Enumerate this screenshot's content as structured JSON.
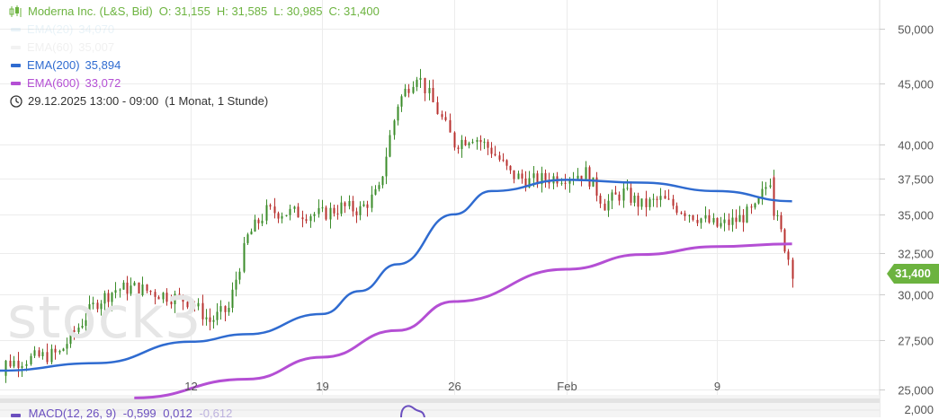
{
  "header": {
    "instrument": "Moderna Inc. (L&S, Bid)",
    "open": "O: 31,155",
    "high": "H: 31,585",
    "low": "L: 30,985",
    "close": "C: 31,400",
    "color": "#6cb33f"
  },
  "indicators": [
    {
      "label": "EMA(20)",
      "value": "34,070",
      "color": "#9ecae1",
      "faded": true
    },
    {
      "label": "EMA(60)",
      "value": "35,007",
      "color": "#c8c8c8",
      "faded": true
    },
    {
      "label": "EMA(200)",
      "value": "35,894",
      "color": "#2f6bd0",
      "faded": false
    },
    {
      "label": "EMA(600)",
      "value": "33,072",
      "color": "#b44fd4",
      "faded": false
    }
  ],
  "datetime": {
    "range": "29.12.2025 13:00 - 09:00",
    "period": "(1 Monat, 1 Stunde)",
    "icon": "clock-icon"
  },
  "macd": {
    "label": "MACD(12, 26, 9)",
    "v1": "-0,599",
    "v2": "0,012",
    "v3": "-0,612",
    "color": "#6b4fbf"
  },
  "watermark": "stock3",
  "current_price_label": "31,400",
  "chart_data": {
    "type": "candlestick",
    "y_scale": "log",
    "ylim": [
      24.6,
      52.5
    ],
    "y_ticks": [
      {
        "value": 50,
        "label": "50,000"
      },
      {
        "value": 45,
        "label": "45,000"
      },
      {
        "value": 40,
        "label": "40,000"
      },
      {
        "value": 37.5,
        "label": "37,500"
      },
      {
        "value": 35,
        "label": "35,000"
      },
      {
        "value": 32.5,
        "label": "32,500"
      },
      {
        "value": 30,
        "label": "30,000"
      },
      {
        "value": 27.5,
        "label": "27,500"
      },
      {
        "value": 25,
        "label": "25,000"
      }
    ],
    "x_ticks": [
      {
        "label": "12",
        "date": "2026-01-12"
      },
      {
        "label": "19",
        "date": "2026-01-19"
      },
      {
        "label": "26",
        "date": "2026-01-26"
      },
      {
        "label": "Feb",
        "date": "2026-02-01"
      },
      {
        "label": "9",
        "date": "2026-02-09"
      }
    ],
    "macd_tick": {
      "value": 2,
      "label": "2,000"
    },
    "price_series": [
      {
        "date": "2025-12-29",
        "close": 26.2
      },
      {
        "date": "2025-12-31",
        "close": 26.0
      },
      {
        "date": "2026-01-02",
        "close": 26.3
      },
      {
        "date": "2026-01-05",
        "close": 26.8
      },
      {
        "date": "2026-01-06",
        "close": 28.2
      },
      {
        "date": "2026-01-07",
        "close": 29.6
      },
      {
        "date": "2026-01-08",
        "close": 30.3
      },
      {
        "date": "2026-01-09",
        "close": 30.4
      },
      {
        "date": "2026-01-12",
        "close": 29.6
      },
      {
        "date": "2026-01-13",
        "close": 28.5
      },
      {
        "date": "2026-01-14",
        "close": 29.2
      },
      {
        "date": "2026-01-15",
        "close": 33.5
      },
      {
        "date": "2026-01-16",
        "close": 35.2
      },
      {
        "date": "2026-01-19",
        "close": 35.0
      },
      {
        "date": "2026-01-20",
        "close": 35.5
      },
      {
        "date": "2026-01-21",
        "close": 35.3
      },
      {
        "date": "2026-01-22",
        "close": 36.6
      },
      {
        "date": "2026-01-23",
        "close": 43.3
      },
      {
        "date": "2026-01-24",
        "close": 45.9
      },
      {
        "date": "2026-01-26",
        "close": 40.1
      },
      {
        "date": "2026-01-27",
        "close": 40.7
      },
      {
        "date": "2026-01-28",
        "close": 39.6
      },
      {
        "date": "2026-01-29",
        "close": 37.8
      },
      {
        "date": "2026-01-30",
        "close": 37.3
      },
      {
        "date": "2026-02-02",
        "close": 37.9
      },
      {
        "date": "2026-02-03",
        "close": 35.7
      },
      {
        "date": "2026-02-04",
        "close": 36.5
      },
      {
        "date": "2026-02-05",
        "close": 35.6
      },
      {
        "date": "2026-02-06",
        "close": 36.0
      },
      {
        "date": "2026-02-09",
        "close": 34.2
      },
      {
        "date": "2026-02-10",
        "close": 34.6
      },
      {
        "date": "2026-02-11",
        "close": 35.3
      },
      {
        "date": "2026-02-12",
        "close": 38.0
      },
      {
        "date": "2026-02-12",
        "close": 35.3
      },
      {
        "date": "2026-02-13",
        "close": 31.4
      }
    ],
    "ema200": [
      {
        "date": "2025-12-29",
        "value": 25.92
      },
      {
        "date": "2026-01-07",
        "value": 26.3
      },
      {
        "date": "2026-01-12",
        "value": 27.4
      },
      {
        "date": "2026-01-15",
        "value": 27.8
      },
      {
        "date": "2026-01-19",
        "value": 28.9
      },
      {
        "date": "2026-01-21",
        "value": 30.2
      },
      {
        "date": "2026-01-23",
        "value": 31.8
      },
      {
        "date": "2026-01-26",
        "value": 35.0
      },
      {
        "date": "2026-01-28",
        "value": 36.6
      },
      {
        "date": "2026-02-01",
        "value": 37.4
      },
      {
        "date": "2026-02-05",
        "value": 37.2
      },
      {
        "date": "2026-02-09",
        "value": 36.6
      },
      {
        "date": "2026-02-13",
        "value": 35.894
      }
    ],
    "ema600": [
      {
        "date": "2026-01-09",
        "value": 24.6
      },
      {
        "date": "2026-01-15",
        "value": 25.5
      },
      {
        "date": "2026-01-19",
        "value": 26.6
      },
      {
        "date": "2026-01-23",
        "value": 28.0
      },
      {
        "date": "2026-01-26",
        "value": 29.6
      },
      {
        "date": "2026-02-01",
        "value": 31.5
      },
      {
        "date": "2026-02-05",
        "value": 32.4
      },
      {
        "date": "2026-02-09",
        "value": 32.9
      },
      {
        "date": "2026-02-13",
        "value": 33.072
      }
    ],
    "grid": true,
    "legend_position": "top-left"
  }
}
